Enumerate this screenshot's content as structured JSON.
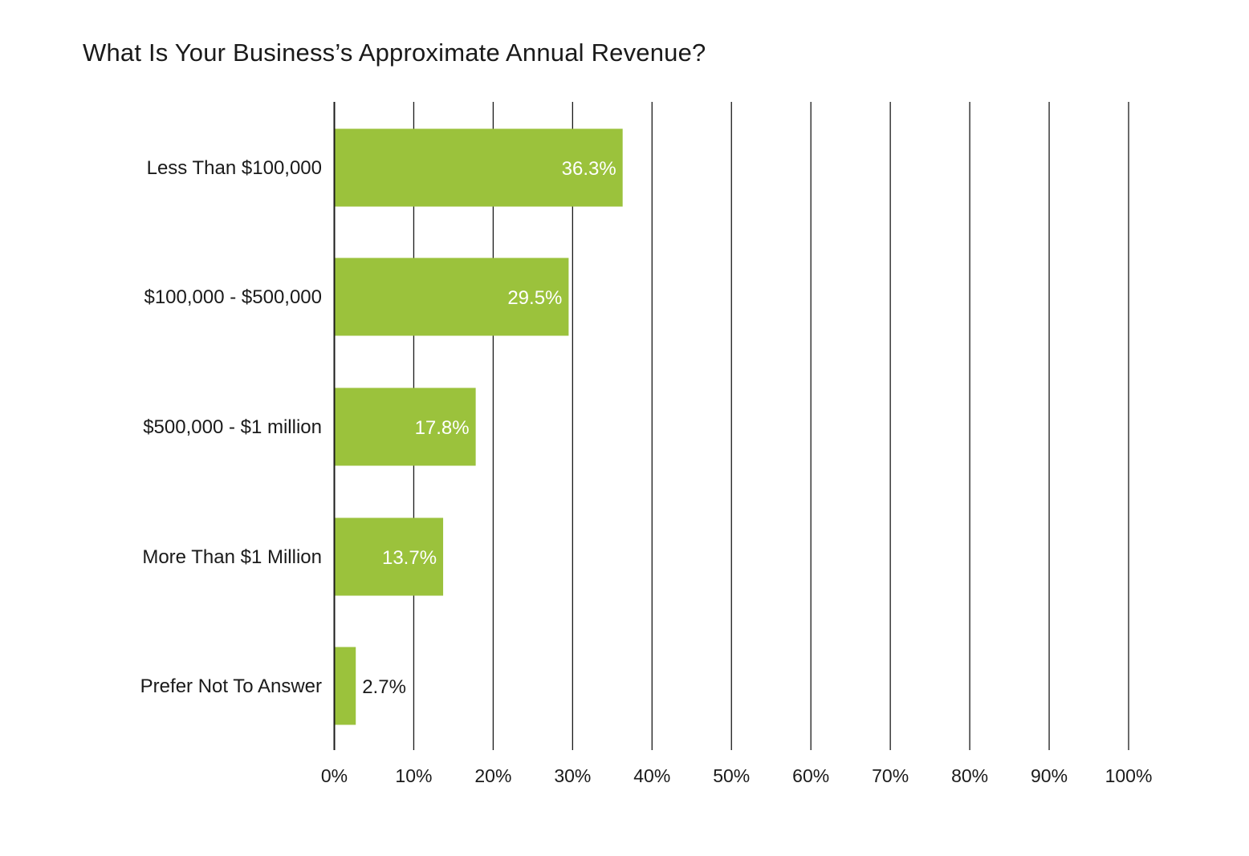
{
  "chart_data": {
    "type": "bar",
    "orientation": "horizontal",
    "title": "What Is Your Business’s Approximate Annual Revenue?",
    "categories": [
      "Less Than $100,000",
      "$100,000 - $500,000",
      "$500,000 - $1 million",
      "More Than $1 Million",
      "Prefer Not To Answer"
    ],
    "values": [
      36.3,
      29.5,
      17.8,
      13.7,
      2.7
    ],
    "data_labels": [
      "36.3%",
      "29.5%",
      "17.8%",
      "13.7%",
      "2.7%"
    ],
    "xlim": [
      0,
      100
    ],
    "x_ticks": [
      0,
      10,
      20,
      30,
      40,
      50,
      60,
      70,
      80,
      90,
      100
    ],
    "x_tick_labels": [
      "0%",
      "10%",
      "20%",
      "30%",
      "40%",
      "50%",
      "60%",
      "70%",
      "80%",
      "90%",
      "100%"
    ],
    "xlabel": "",
    "ylabel": "",
    "grid": "vertical",
    "legend": "none",
    "colors": {
      "bar": "#9bc23c",
      "grid": "#1a1a1a",
      "label_inside": "#ffffff",
      "label_outside": "#1a1a1a"
    }
  }
}
